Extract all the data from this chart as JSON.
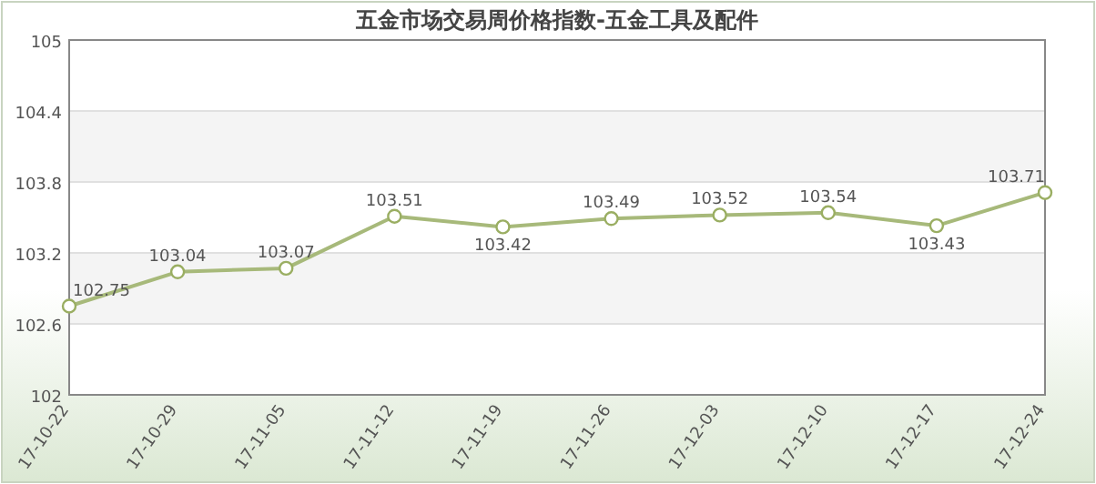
{
  "chart_data": {
    "type": "line",
    "title": "五金市场交易周价格指数-五金工具及配件",
    "categories": [
      "17-10-22",
      "17-10-29",
      "17-11-05",
      "17-11-12",
      "17-11-19",
      "17-11-26",
      "17-12-03",
      "17-12-10",
      "17-12-17",
      "17-12-24"
    ],
    "values": [
      102.75,
      103.04,
      103.07,
      103.51,
      103.42,
      103.49,
      103.52,
      103.54,
      103.43,
      103.71
    ],
    "color": "#a7b97a",
    "marker": "circle",
    "line_style": "solid",
    "data_labels": true,
    "grid": "y",
    "ylim": [
      102,
      105
    ],
    "yticks": [
      102,
      102.6,
      103.2,
      103.8,
      104.4,
      105
    ]
  }
}
